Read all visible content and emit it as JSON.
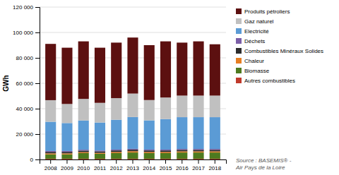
{
  "chart_data": {
    "type": "bar",
    "stacked": true,
    "ylabel": "GWh",
    "categories": [
      "2008",
      "2009",
      "2010",
      "2011",
      "2012",
      "2013",
      "2014",
      "2015",
      "2016",
      "2017",
      "2018"
    ],
    "series": [
      {
        "name": "Autres combustibles",
        "color": "#c0392b",
        "values": [
          500,
          500,
          500,
          500,
          500,
          500,
          500,
          500,
          500,
          500,
          500
        ]
      },
      {
        "name": "Biomasse",
        "color": "#4d7a1f",
        "values": [
          3500,
          3500,
          4500,
          4000,
          4500,
          5000,
          4500,
          4500,
          5000,
          5000,
          5000
        ]
      },
      {
        "name": "Chaleur",
        "color": "#e67e22",
        "values": [
          800,
          800,
          800,
          700,
          900,
          1000,
          900,
          900,
          900,
          900,
          900
        ]
      },
      {
        "name": "Combustibles Minéraux Solides",
        "color": "#2c2c2c",
        "values": [
          1200,
          1200,
          1200,
          1200,
          1200,
          1200,
          1200,
          1200,
          1200,
          1200,
          1200
        ]
      },
      {
        "name": "Déchets",
        "color": "#7b5ea7",
        "values": [
          700,
          700,
          700,
          700,
          700,
          700,
          700,
          700,
          700,
          700,
          700
        ]
      },
      {
        "name": "Electricité",
        "color": "#5b9bd5",
        "values": [
          23000,
          22000,
          23000,
          22000,
          23500,
          25000,
          23000,
          24000,
          25000,
          25000,
          25000
        ]
      },
      {
        "name": "Gaz naturel",
        "color": "#c0c0c0",
        "values": [
          17000,
          15000,
          17000,
          15500,
          17000,
          18500,
          16000,
          17000,
          17000,
          17000,
          17000
        ]
      },
      {
        "name": "Produits pétroliers",
        "color": "#5c1010",
        "values": [
          44300,
          44300,
          45300,
          43400,
          43700,
          44100,
          43200,
          44200,
          41700,
          42700,
          40400
        ]
      }
    ],
    "ylim": [
      0,
      120000
    ],
    "yticks": [
      0,
      {
        "value": 20000,
        "label": "20 000"
      },
      {
        "value": 40000,
        "label": "40 000"
      },
      {
        "value": 60000,
        "label": "60 000"
      },
      {
        "value": 80000,
        "label": "80 000"
      },
      {
        "value": 100000,
        "label": "100 000"
      },
      {
        "value": 120000,
        "label": "120 000"
      }
    ],
    "grid": true,
    "legend": "right",
    "annotations": [
      "Source : BASEMIS® -\nAir Pays de la Loire"
    ]
  }
}
